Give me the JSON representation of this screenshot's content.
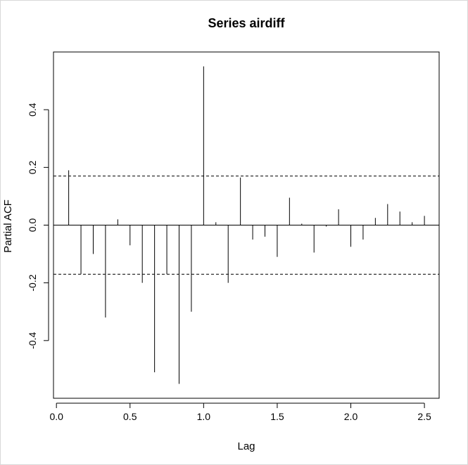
{
  "chart_data": {
    "type": "bar",
    "title": "Series  airdiff",
    "xlabel": "Lag",
    "ylabel": "Partial ACF",
    "xlim": [
      -0.02,
      2.6
    ],
    "ylim": [
      -0.6,
      0.6
    ],
    "x_ticks": [
      0.0,
      0.5,
      1.0,
      1.5,
      2.0,
      2.5
    ],
    "x_tick_labels": [
      "0.0",
      "0.5",
      "1.0",
      "1.5",
      "2.0",
      "2.5"
    ],
    "y_ticks": [
      -0.4,
      -0.2,
      0.0,
      0.2,
      0.4
    ],
    "y_tick_labels": [
      "-0.4",
      "-0.2",
      "0.0",
      "0.2",
      "0.4"
    ],
    "confidence_bound": 0.17,
    "grid": false,
    "x": [
      0.0833,
      0.1667,
      0.25,
      0.3333,
      0.4167,
      0.5,
      0.5833,
      0.6667,
      0.75,
      0.8333,
      0.9167,
      1.0,
      1.0833,
      1.1667,
      1.25,
      1.3333,
      1.4167,
      1.5,
      1.5833,
      1.6667,
      1.75,
      1.8333,
      1.9167,
      2.0,
      2.0833,
      2.1667,
      2.25,
      2.3333,
      2.4167,
      2.5
    ],
    "values": [
      0.19,
      -0.17,
      -0.1,
      -0.32,
      0.02,
      -0.07,
      -0.2,
      -0.51,
      -0.17,
      -0.55,
      -0.3,
      0.55,
      0.01,
      -0.2,
      0.165,
      -0.05,
      -0.04,
      -0.11,
      0.095,
      0.005,
      -0.095,
      -0.005,
      0.055,
      -0.075,
      -0.05,
      0.025,
      0.073,
      0.047,
      0.01,
      0.032
    ]
  },
  "colors": {
    "line": "#000000",
    "background": "#ffffff"
  }
}
